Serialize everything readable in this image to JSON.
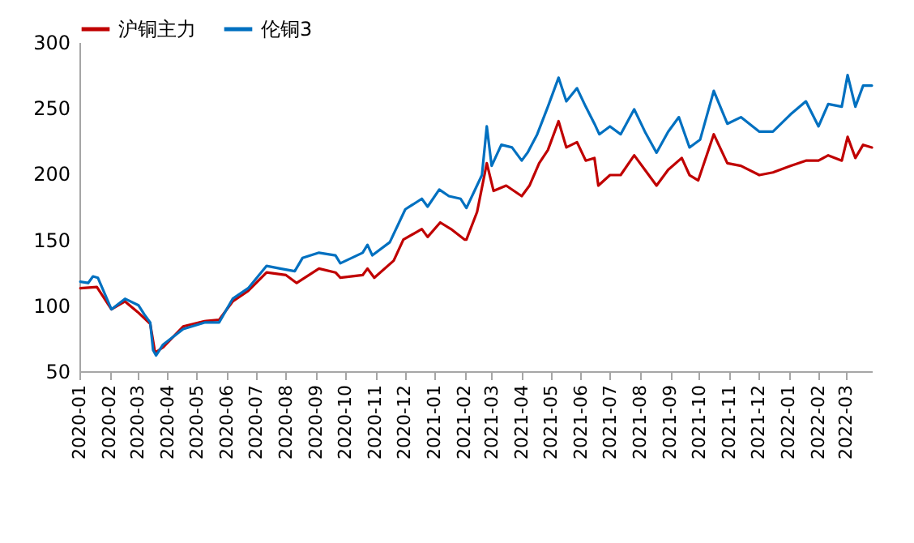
{
  "chart_data": {
    "type": "line",
    "legend": "top",
    "line_style": "solid",
    "marker": "none",
    "grid": false,
    "xlim": [
      "2020-01-01",
      "2022-03-28"
    ],
    "xticks": [
      "2020-01",
      "2020-02",
      "2020-03",
      "2020-04",
      "2020-05",
      "2020-06",
      "2020-07",
      "2020-08",
      "2020-09",
      "2020-10",
      "2020-11",
      "2020-12",
      "2021-01",
      "2021-02",
      "2021-03",
      "2021-04",
      "2021-05",
      "2021-06",
      "2021-07",
      "2021-08",
      "2021-09",
      "2021-10",
      "2021-11",
      "2021-12",
      "2022-01",
      "2022-02",
      "2022-03"
    ],
    "ylim": [
      50,
      300
    ],
    "yticks": [
      50,
      100,
      150,
      200,
      250,
      300
    ],
    "series": [
      {
        "name": "沪铜主力",
        "color": "#c00000",
        "x": [
          "2020-01-02",
          "2020-01-19",
          "2020-02-03",
          "2020-02-17",
          "2020-03-01",
          "2020-03-14",
          "2020-03-19",
          "2020-03-27",
          "2020-04-17",
          "2020-05-09",
          "2020-05-24",
          "2020-06-07",
          "2020-06-23",
          "2020-07-12",
          "2020-08-01",
          "2020-08-12",
          "2020-09-04",
          "2020-09-21",
          "2020-09-26",
          "2020-10-19",
          "2020-10-24",
          "2020-10-31",
          "2020-11-20",
          "2020-11-30",
          "2020-12-19",
          "2020-12-25",
          "2021-01-07",
          "2021-01-18",
          "2021-02-01",
          "2021-02-03",
          "2021-02-14",
          "2021-02-24",
          "2021-03-03",
          "2021-03-16",
          "2021-04-01",
          "2021-04-09",
          "2021-04-19",
          "2021-04-28",
          "2021-05-09",
          "2021-05-17",
          "2021-05-28",
          "2021-06-06",
          "2021-06-15",
          "2021-06-19",
          "2021-07-01",
          "2021-07-12",
          "2021-07-26",
          "2021-08-06",
          "2021-08-18",
          "2021-08-30",
          "2021-09-13",
          "2021-09-21",
          "2021-09-30",
          "2021-10-16",
          "2021-10-30",
          "2021-11-13",
          "2021-12-02",
          "2021-12-16",
          "2022-01-03",
          "2022-01-19",
          "2022-02-01",
          "2022-02-11",
          "2022-02-25",
          "2022-03-03",
          "2022-03-11",
          "2022-03-19",
          "2022-03-28"
        ],
        "values": [
          113,
          114,
          97,
          103,
          95,
          86,
          64,
          68,
          84,
          88,
          89,
          103,
          111,
          125,
          123,
          117,
          128,
          125,
          121,
          123,
          128,
          121,
          134,
          150,
          158,
          152,
          163,
          158,
          150,
          150,
          171,
          208,
          187,
          191,
          183,
          191,
          208,
          218,
          240,
          220,
          224,
          210,
          212,
          191,
          199,
          199,
          214,
          203,
          191,
          203,
          212,
          199,
          195,
          230,
          208,
          206,
          199,
          201,
          206,
          210,
          210,
          214,
          210,
          228,
          212,
          222,
          220
        ]
      },
      {
        "name": "伦铜3",
        "color": "#0070c0",
        "x": [
          "2020-01-02",
          "2020-01-10",
          "2020-01-15",
          "2020-01-20",
          "2020-02-03",
          "2020-02-17",
          "2020-03-02",
          "2020-03-08",
          "2020-03-14",
          "2020-03-17",
          "2020-03-20",
          "2020-03-27",
          "2020-04-17",
          "2020-05-09",
          "2020-05-24",
          "2020-06-07",
          "2020-06-23",
          "2020-07-12",
          "2020-07-26",
          "2020-08-10",
          "2020-08-18",
          "2020-09-04",
          "2020-09-21",
          "2020-09-26",
          "2020-10-19",
          "2020-10-24",
          "2020-10-29",
          "2020-11-16",
          "2020-12-02",
          "2020-12-19",
          "2020-12-25",
          "2021-01-06",
          "2021-01-16",
          "2021-01-28",
          "2021-02-03",
          "2021-02-19",
          "2021-02-24",
          "2021-03-01",
          "2021-03-11",
          "2021-03-22",
          "2021-04-01",
          "2021-04-07",
          "2021-04-17",
          "2021-04-28",
          "2021-05-09",
          "2021-05-17",
          "2021-05-28",
          "2021-06-06",
          "2021-06-15",
          "2021-06-20",
          "2021-07-01",
          "2021-07-12",
          "2021-07-26",
          "2021-08-06",
          "2021-08-18",
          "2021-08-30",
          "2021-09-10",
          "2021-09-21",
          "2021-10-02",
          "2021-10-16",
          "2021-10-30",
          "2021-11-13",
          "2021-12-02",
          "2021-12-16",
          "2022-01-03",
          "2022-01-19",
          "2022-02-01",
          "2022-02-11",
          "2022-02-25",
          "2022-03-03",
          "2022-03-11",
          "2022-03-19",
          "2022-03-28"
        ],
        "values": [
          118,
          117,
          122,
          121,
          97,
          105,
          100,
          93,
          87,
          66,
          62,
          70,
          82,
          87,
          87,
          105,
          113,
          130,
          128,
          126,
          136,
          140,
          138,
          132,
          140,
          146,
          138,
          148,
          173,
          181,
          175,
          188,
          183,
          181,
          174,
          199,
          236,
          206,
          222,
          220,
          210,
          216,
          230,
          251,
          273,
          255,
          265,
          251,
          238,
          230,
          236,
          230,
          249,
          232,
          216,
          232,
          243,
          220,
          226,
          263,
          238,
          243,
          232,
          232,
          245,
          255,
          236,
          253,
          251,
          275,
          251,
          267,
          267
        ]
      }
    ]
  }
}
